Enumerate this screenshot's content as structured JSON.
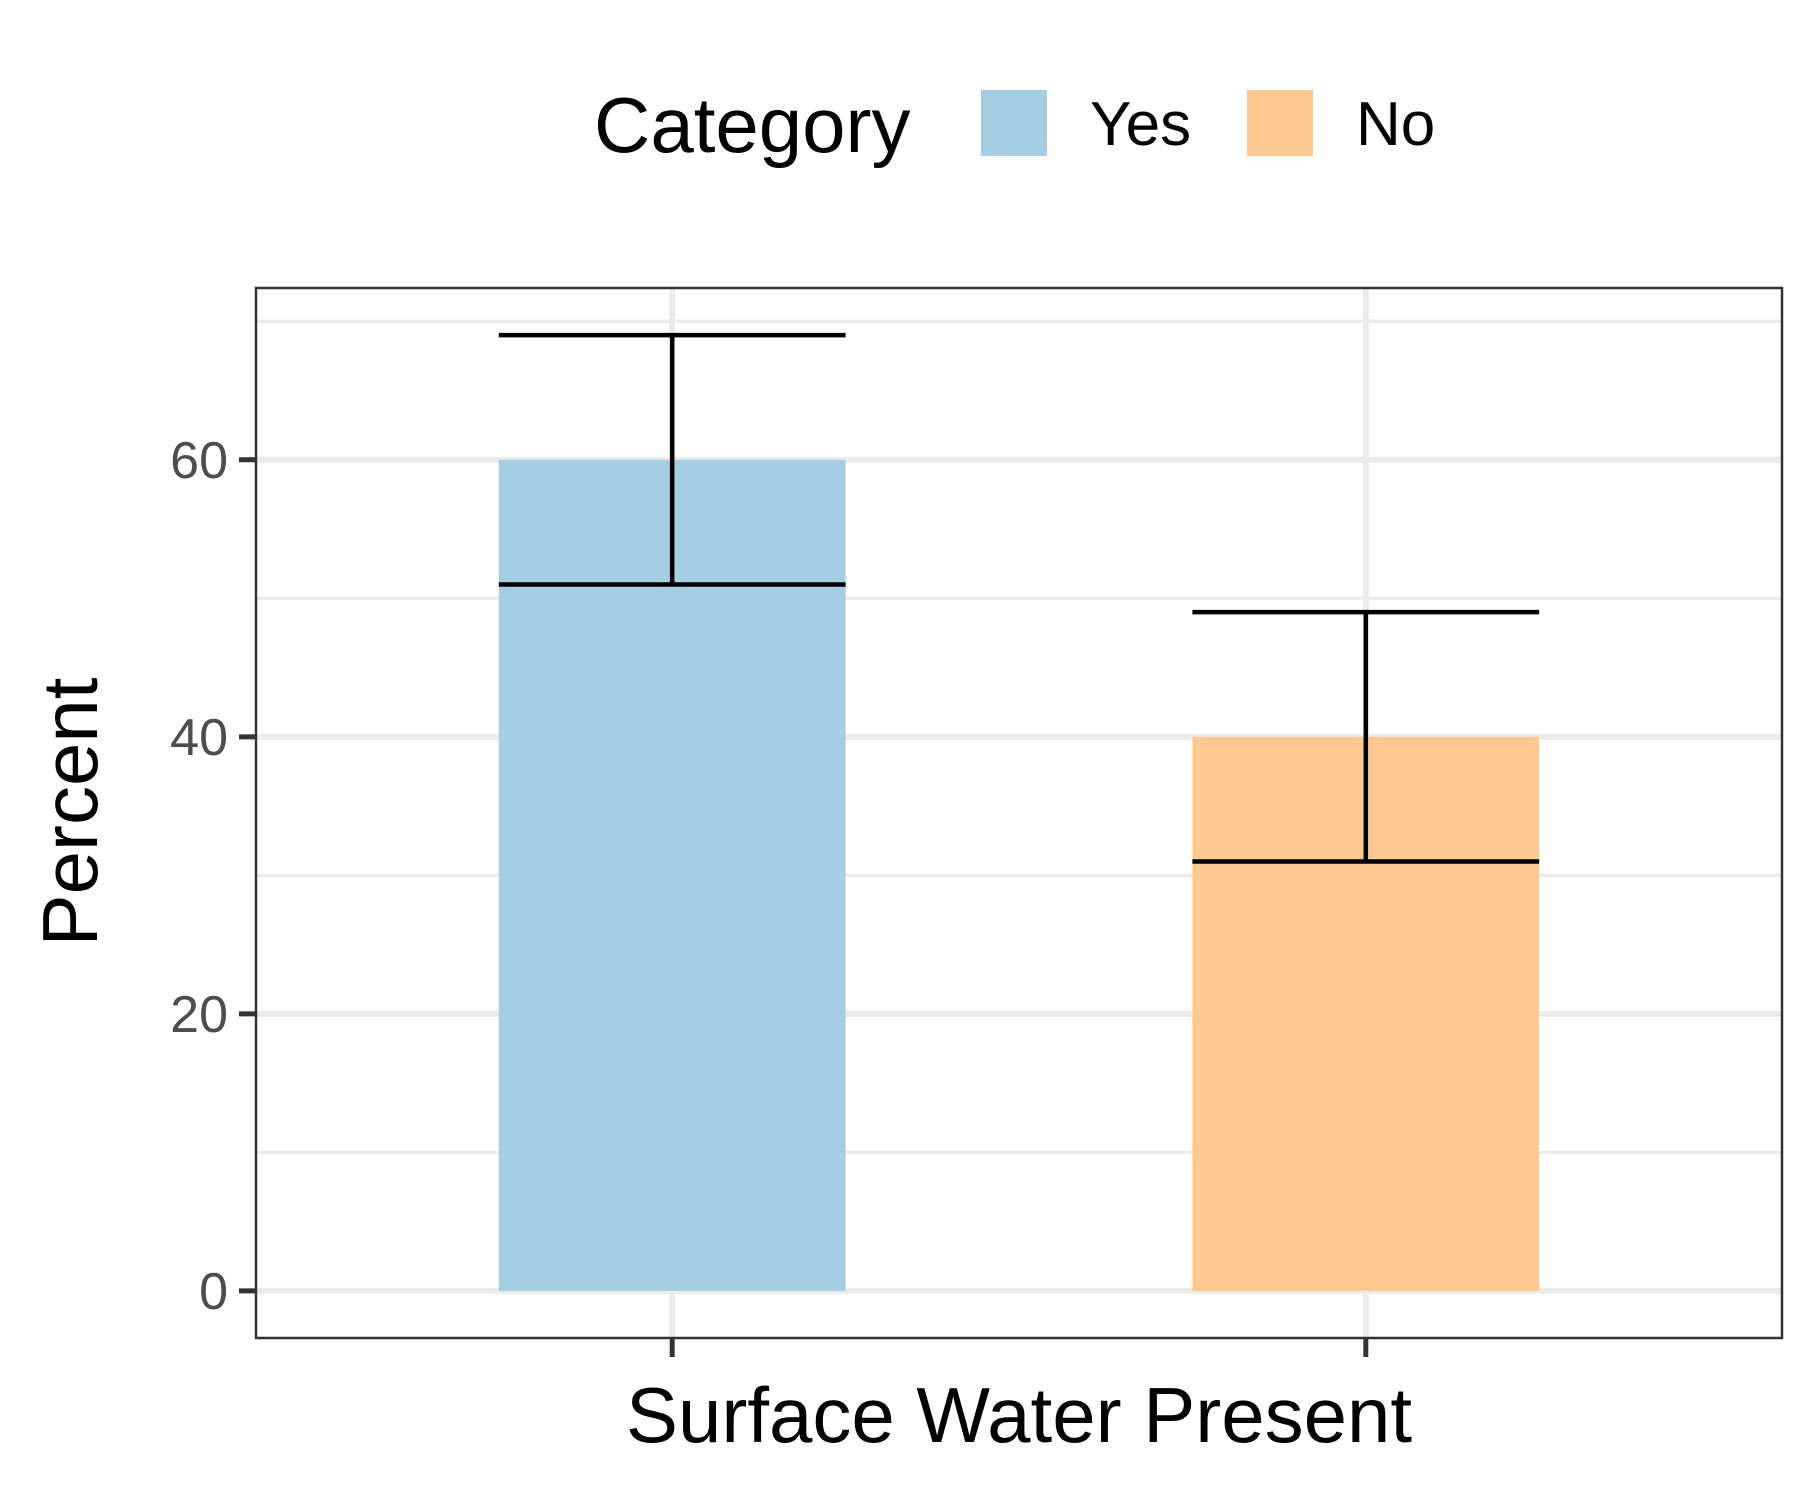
{
  "chart_data": {
    "type": "bar",
    "categories": [
      "Yes",
      "No"
    ],
    "values": [
      60,
      40
    ],
    "error_bars": [
      {
        "category": "Yes",
        "lower": 51,
        "upper": 69
      },
      {
        "category": "No",
        "lower": 31,
        "upper": 49
      }
    ],
    "xlabel": "Surface Water Present",
    "ylabel": "Percent",
    "ylim": [
      -3.4,
      72.4
    ],
    "yticks": [
      0,
      20,
      40,
      60
    ],
    "yticks_minor": [
      10,
      30,
      50,
      70
    ],
    "show_x_tick_labels": false,
    "grid": true,
    "legend": {
      "title": "Category",
      "position": "top",
      "entries": [
        {
          "label": "Yes",
          "color": "#a6cee3"
        },
        {
          "label": "No",
          "color": "#fdc98e"
        }
      ]
    },
    "colors": {
      "Yes": "#a6cee3",
      "No": "#fdc98e"
    }
  }
}
